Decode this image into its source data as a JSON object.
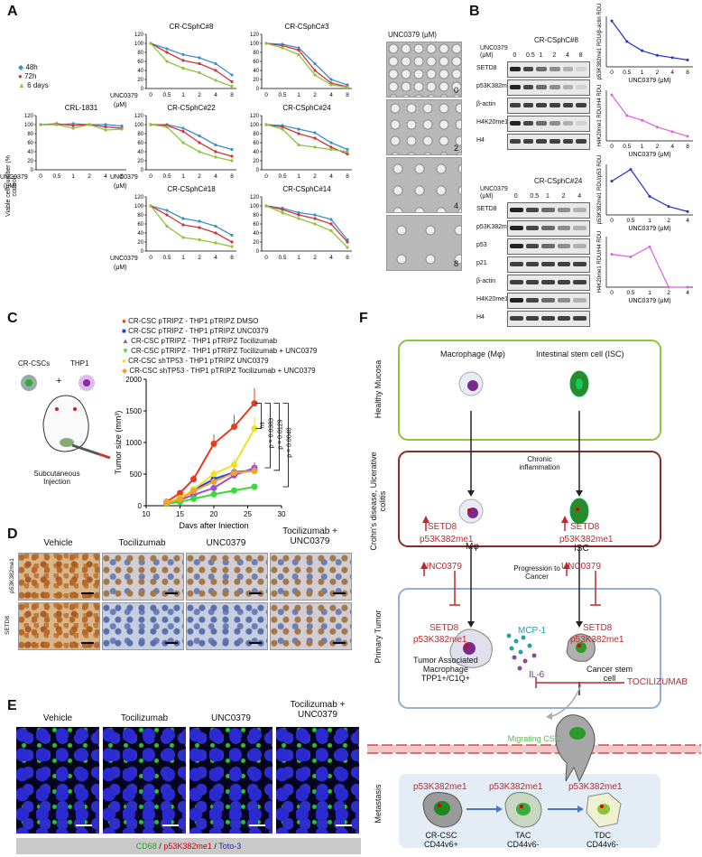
{
  "panels": {
    "A": "A",
    "B": "B",
    "C": "C",
    "D": "D",
    "E": "E",
    "F": "F"
  },
  "panelA": {
    "legend": [
      "48h",
      "72h",
      "6 days"
    ],
    "series_colors": [
      "#3b8fd0",
      "#d0343b",
      "#8fc43a"
    ],
    "ylabel": "Viable cell number (% control)",
    "xlabel_line1": "UNC0379",
    "xlabel_line2": "(μM)",
    "xticks": [
      "0",
      "0.5",
      "1",
      "2",
      "4",
      "8"
    ],
    "yticks": [
      "0",
      "20",
      "40",
      "60",
      "80",
      "100",
      "120"
    ],
    "charts": [
      {
        "title": "CR-CSphC#8",
        "48h": [
          100,
          88,
          75,
          68,
          55,
          30
        ],
        "72h": [
          100,
          80,
          62,
          55,
          40,
          15
        ],
        "6 days": [
          100,
          60,
          45,
          35,
          18,
          5
        ]
      },
      {
        "title": "CR-CSphC#3",
        "48h": [
          100,
          98,
          90,
          55,
          20,
          8
        ],
        "72h": [
          100,
          95,
          85,
          40,
          12,
          4
        ],
        "6 days": [
          100,
          90,
          75,
          30,
          8,
          3
        ]
      },
      {
        "title": "CRL-1831",
        "48h": [
          100,
          100,
          102,
          100,
          100,
          97
        ],
        "72h": [
          100,
          102,
          98,
          100,
          95,
          92
        ],
        "6 days": [
          100,
          100,
          92,
          100,
          88,
          90
        ]
      },
      {
        "title": "CR-CSphC#22",
        "48h": [
          100,
          100,
          92,
          75,
          55,
          45
        ],
        "72h": [
          100,
          98,
          85,
          60,
          40,
          30
        ],
        "6 days": [
          100,
          95,
          60,
          40,
          28,
          20
        ]
      },
      {
        "title": "CR-CSphC#24",
        "48h": [
          100,
          98,
          90,
          82,
          60,
          45
        ],
        "72h": [
          100,
          95,
          80,
          70,
          50,
          35
        ],
        "6 days": [
          100,
          90,
          55,
          50,
          45,
          40
        ]
      },
      {
        "title": "CR-CSphC#18",
        "48h": [
          100,
          90,
          72,
          66,
          55,
          35
        ],
        "72h": [
          100,
          80,
          58,
          52,
          40,
          20
        ],
        "6 days": [
          100,
          55,
          30,
          25,
          18,
          10
        ]
      },
      {
        "title": "CR-CSphC#14",
        "48h": [
          100,
          95,
          85,
          80,
          70,
          25
        ],
        "72h": [
          100,
          92,
          80,
          72,
          60,
          20
        ],
        "6 days": [
          100,
          85,
          72,
          60,
          45,
          8
        ]
      }
    ],
    "micro_title": "UNC0379   (μM)",
    "micro_labels": [
      "0",
      "2",
      "4",
      "8"
    ]
  },
  "panelB": {
    "blot1": {
      "title": "CR-CSphC#8",
      "unit_line1": "UNC0379",
      "unit_line2": "(μM)",
      "lanes": [
        "0",
        "0.5",
        "1",
        "2",
        "4",
        "8"
      ],
      "rows": [
        "SETD8",
        "p53K382me1",
        "β-actin",
        "H4K20me1",
        "H4"
      ]
    },
    "blot2": {
      "title": "CR-CSphC#24",
      "unit_line1": "UNC0379",
      "unit_line2": "(μM)",
      "lanes": [
        "0",
        "0.5",
        "1",
        "2",
        "4"
      ],
      "rows": [
        "SETD8",
        "p53K382me1",
        "p53",
        "p21",
        "β-actin",
        "H4K20me1",
        "H4"
      ]
    },
    "quant": [
      {
        "ylabel": "p53K382me1 RDU/β-actin RDU",
        "color": "#2233cc",
        "x": [
          "0",
          "0.5",
          "1",
          "2",
          "4",
          "8"
        ],
        "y": [
          1.0,
          0.55,
          0.35,
          0.25,
          0.2,
          0.15
        ],
        "xlabel": "UNC0379 (μM)"
      },
      {
        "ylabel": "H4K20me1 RDU/H4 RDU",
        "color": "#e060e0",
        "x": [
          "0",
          "0.5",
          "1",
          "2",
          "4",
          "8"
        ],
        "y": [
          1.0,
          0.55,
          0.45,
          0.3,
          0.2,
          0.1
        ],
        "xlabel": "UNC0379 (μM)"
      },
      {
        "ylabel": "p53K382me1 RDU/p53 RDU",
        "color": "#2233cc",
        "x": [
          "0",
          "0.5",
          "1",
          "2",
          "4"
        ],
        "y": [
          1.0,
          1.35,
          0.55,
          0.25,
          0.1
        ],
        "xlabel": "UNC0379 (μM)"
      },
      {
        "ylabel": "H4K20me1 RDU/H4 RDU",
        "color": "#e060e0",
        "x": [
          "0",
          "0.5",
          "1",
          "2",
          "4"
        ],
        "y": [
          1.3,
          1.2,
          1.6,
          0.0,
          0.0
        ],
        "xlabel": "UNC0379 (μM)"
      }
    ]
  },
  "panelC": {
    "cells": [
      "CR-CSCs",
      "+",
      "THP1"
    ],
    "injection": "Subcutaneous Injection",
    "legend": [
      {
        "label": "CR-CSC pTRIPZ - THP1 pTRIPZ DMSO",
        "color": "#e83a1c",
        "marker": "circle"
      },
      {
        "label": "CR-CSC pTRIPZ - THP1 pTRIPZ UNC0379",
        "color": "#2244dd",
        "marker": "square"
      },
      {
        "label": "CR-CSC pTRIPZ - THP1 pTRIPZ Tocilizumab",
        "color": "#9b4fd6",
        "marker": "triangle"
      },
      {
        "label": "CR-CSC pTRIPZ - THP1 pTRIPZ Tocilizumab + UNC0379",
        "color": "#33dd33",
        "marker": "down"
      },
      {
        "label": "CR-CSC shTP53 - THP1 pTRIPZ UNC0379",
        "color": "#f0e020",
        "marker": "circle"
      },
      {
        "label": "CR-CSC shTP53 - THP1 pTRIPZ Tocilizumab + UNC0379",
        "color": "#f0a030",
        "marker": "diamond"
      }
    ],
    "ylabel": "Tumor size (mm³)",
    "xlabel": "Days after Injection",
    "xticks": [
      "10",
      "15",
      "20",
      "25",
      "30"
    ],
    "yticks": [
      "0",
      "500",
      "1000",
      "1500",
      "2000"
    ],
    "x": [
      13,
      15,
      17,
      20,
      23,
      26
    ],
    "series": [
      [
        60,
        200,
        420,
        980,
        1250,
        1620
      ],
      [
        50,
        110,
        250,
        420,
        530,
        560
      ],
      [
        40,
        90,
        170,
        280,
        480,
        600
      ],
      [
        30,
        60,
        110,
        180,
        240,
        300
      ],
      [
        50,
        120,
        260,
        500,
        650,
        1220
      ],
      [
        40,
        100,
        230,
        380,
        520,
        550
      ]
    ],
    "pvalues": [
      "ns",
      "p = 0.0383",
      "p = 0.0129",
      "p = 0.0040"
    ]
  },
  "panelD": {
    "cols": [
      "Vehicle",
      "Tocilizumab",
      "UNC0379",
      "Tocilizumab + UNC0379"
    ],
    "rows": [
      "p53K382me1",
      "SETD8"
    ]
  },
  "panelE": {
    "cols": [
      "Vehicle",
      "Tocilizumab",
      "UNC0379",
      "Tocilizumab + UNC0379"
    ],
    "legend": [
      "CD68",
      "/",
      "p53K382me1",
      "/",
      "Toto-3"
    ]
  },
  "panelF": {
    "row1": {
      "side": "Healthy Mucosa",
      "left": "Macrophage (Mφ)",
      "right": "Intestinal stem cell (ISC)"
    },
    "row2": {
      "side": "Crohn's disease, Ulcerative colitis",
      "arrow": "Chronic inflammation",
      "left_setd8": "SETD8",
      "left_p53": "p53K382me1",
      "left_cell": "Mφ",
      "right_setd8": "SETD8",
      "right_p53": "p53K382me1",
      "right_cell": "ISC"
    },
    "progression": "Progression to Cancer",
    "row3": {
      "side": "Primary Tumor",
      "inhibitor": "UNC0379",
      "setd8": "SETD8",
      "p53": "p53K382me1",
      "mcp": "MCP-1",
      "il6": "IL-6",
      "tam1": "Tumor Associated",
      "tam2": "Macrophage",
      "tam3": "TPP1+/C1Q+",
      "csc1": "Cancer stem",
      "csc2": "cell",
      "toci": "TOCILIZUMAB"
    },
    "migrating": "Migrating CSC",
    "row4": {
      "side": "Metastasis",
      "p53": "p53K382me1",
      "cells": [
        {
          "name": "CR-CSC",
          "marker": "CD44v6+"
        },
        {
          "name": "TAC",
          "marker": "CD44v6-"
        },
        {
          "name": "TDC",
          "marker": "CD44v6-"
        }
      ]
    }
  }
}
